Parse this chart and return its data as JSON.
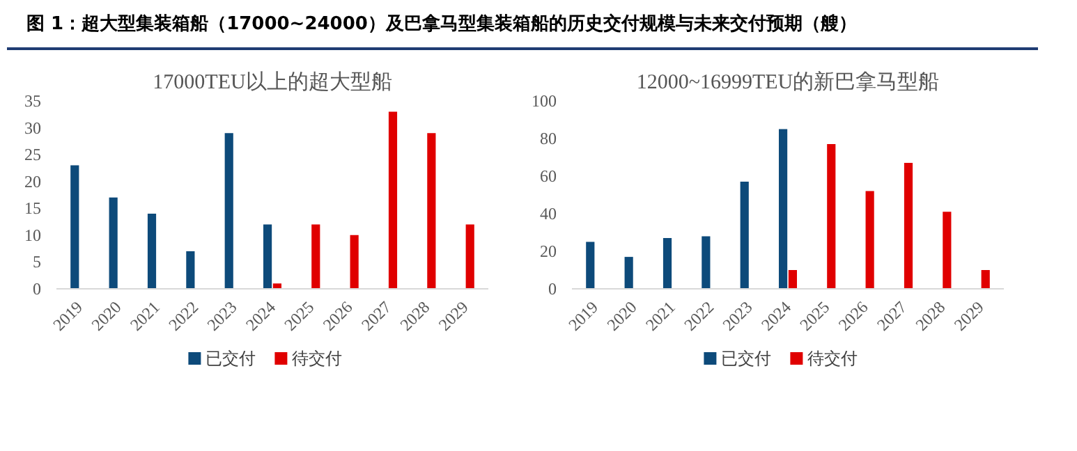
{
  "chart_data": [
    {
      "type": "bar",
      "title": "17000TEU以上的超大型船",
      "annotations": [
        "图 1：超大型集装箱船（17000~24000）及巴拿马型集装箱船的历史交付规模与未来交付预期（艘）"
      ],
      "categories": [
        "2019",
        "2020",
        "2021",
        "2022",
        "2023",
        "2024",
        "2025",
        "2026",
        "2027",
        "2028",
        "2029"
      ],
      "series": [
        {
          "name": "已交付",
          "color": "#0d4a7a",
          "values": [
            23,
            17,
            14,
            7,
            29,
            12,
            null,
            null,
            null,
            null,
            null
          ]
        },
        {
          "name": "待交付",
          "color": "#e00000",
          "values": [
            null,
            null,
            null,
            null,
            null,
            1,
            12,
            10,
            33,
            29,
            12
          ]
        }
      ],
      "ylim": [
        0,
        35
      ],
      "yticks": [
        0,
        5,
        10,
        15,
        20,
        25,
        30,
        35
      ],
      "grid": false,
      "legend": "bottom"
    },
    {
      "type": "bar",
      "title": "12000~16999TEU的新巴拿马型船",
      "categories": [
        "2019",
        "2020",
        "2021",
        "2022",
        "2023",
        "2024",
        "2025",
        "2026",
        "2027",
        "2028",
        "2029"
      ],
      "series": [
        {
          "name": "已交付",
          "color": "#0d4a7a",
          "values": [
            25,
            17,
            27,
            28,
            57,
            85,
            null,
            null,
            null,
            null,
            null
          ]
        },
        {
          "name": "待交付",
          "color": "#e00000",
          "values": [
            null,
            null,
            null,
            null,
            null,
            10,
            77,
            52,
            67,
            41,
            10
          ]
        }
      ],
      "ylim": [
        0,
        100
      ],
      "yticks": [
        0,
        20,
        40,
        60,
        80,
        100
      ],
      "grid": false,
      "legend": "bottom"
    }
  ]
}
